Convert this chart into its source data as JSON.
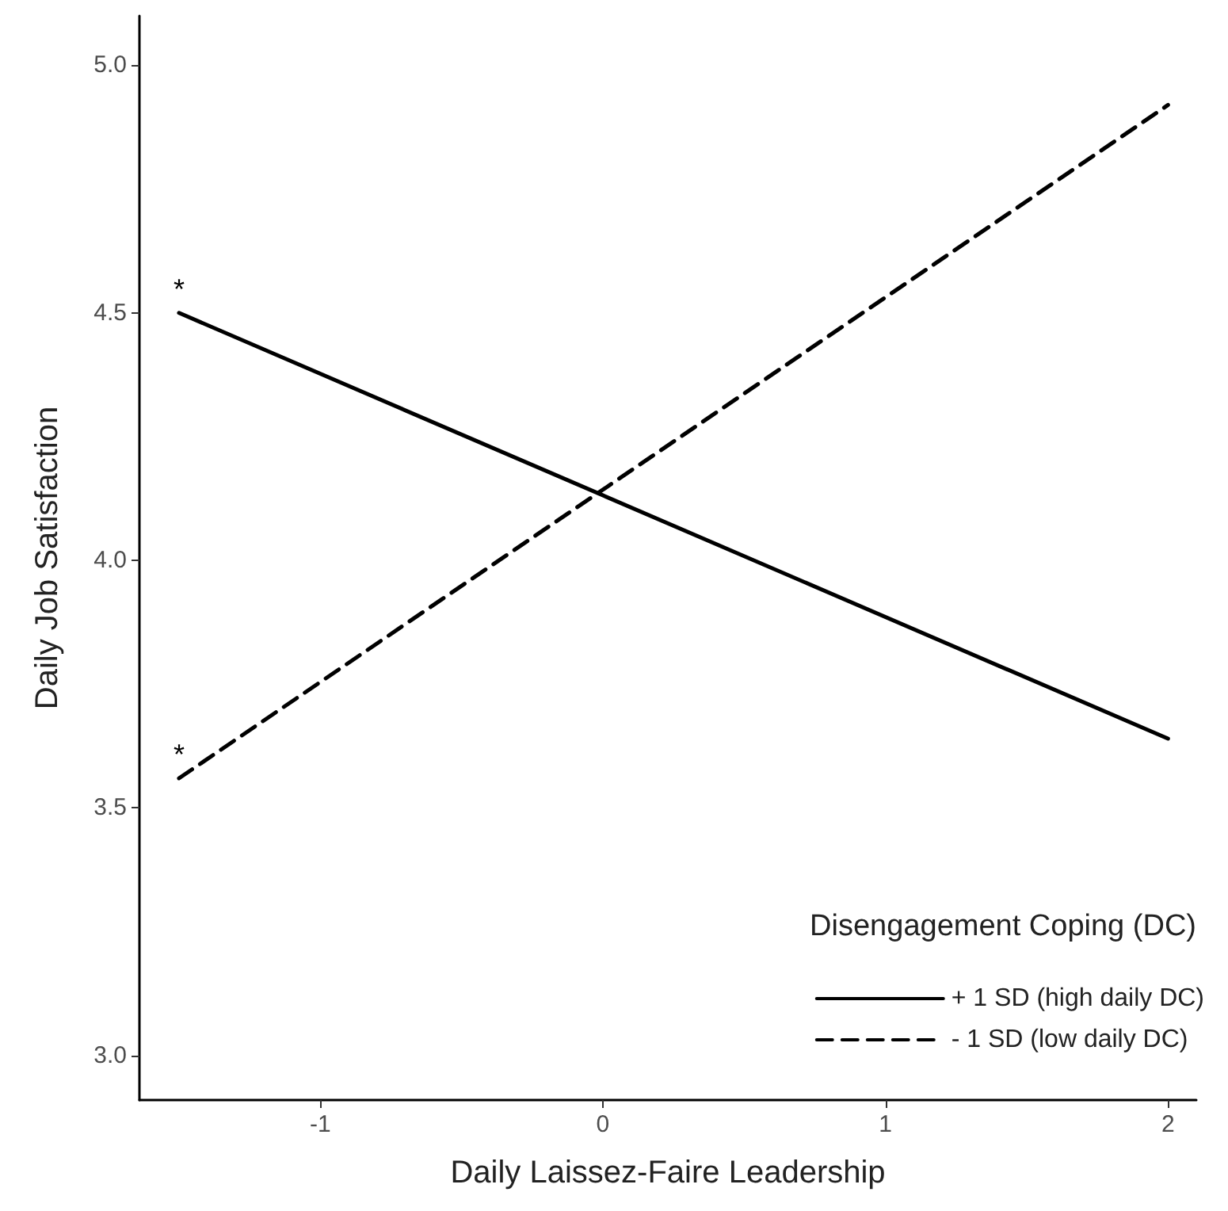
{
  "chart_data": {
    "type": "line",
    "xlabel": "Daily Laissez-Faire Leadership",
    "ylabel": "Daily Job Satisfaction",
    "legend_title": "Disengagement Coping (DC)",
    "x": [
      -1.5,
      2
    ],
    "series": [
      {
        "name": "+ 1 SD (high daily DC)",
        "color": "#000000",
        "values": [
          4.5,
          3.64
        ],
        "line_style": "solid"
      },
      {
        "name": "- 1 SD (low daily DC)",
        "color": "#000000",
        "values": [
          3.56,
          4.92
        ],
        "line_style": "dashed"
      }
    ],
    "xlim": [
      -1.64,
      2.1
    ],
    "xticks": [
      -1,
      0,
      1,
      2
    ],
    "ylim": [
      2.91,
      5.1
    ],
    "yticks": [
      {
        "value": 3,
        "label": "3.0"
      },
      {
        "value": 3.5,
        "label": "3.5"
      },
      {
        "value": 4,
        "label": "4.0"
      },
      {
        "value": 4.5,
        "label": "4.5"
      },
      {
        "value": 5,
        "label": "5.0"
      }
    ],
    "annotations": [
      {
        "text": "*",
        "x": -1.5,
        "y": 4.5
      },
      {
        "text": "*",
        "x": -1.5,
        "y": 3.56
      }
    ],
    "grid": false,
    "legend": "bottom right",
    "marker": "none"
  }
}
